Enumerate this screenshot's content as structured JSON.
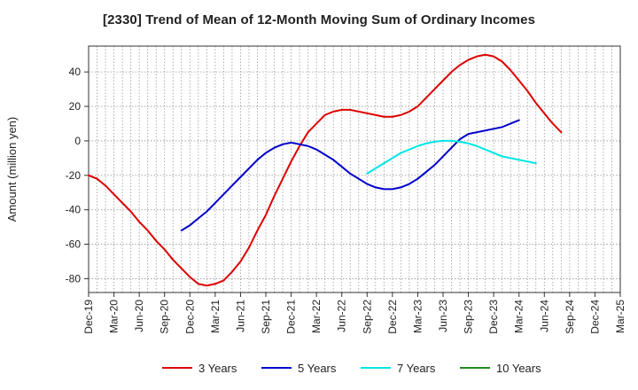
{
  "chart_data": {
    "type": "line",
    "title": "[2330]  Trend of Mean of 12-Month Moving Sum of Ordinary Incomes",
    "xlabel": "",
    "ylabel": "Amount (million yen)",
    "ylim": [
      -88,
      55
    ],
    "yticks": [
      40,
      20,
      0,
      -20,
      -40,
      -60,
      -80
    ],
    "grid": true,
    "legend_position": "bottom-center",
    "categories": [
      "Dec-19",
      "Mar-20",
      "Jun-20",
      "Sep-20",
      "Dec-20",
      "Mar-21",
      "Jun-21",
      "Sep-21",
      "Dec-21",
      "Mar-22",
      "Jun-22",
      "Sep-22",
      "Dec-22",
      "Mar-23",
      "Jun-23",
      "Sep-23",
      "Dec-23",
      "Mar-24",
      "Jun-24",
      "Sep-24",
      "Dec-24",
      "Mar-25"
    ],
    "series": [
      {
        "name": "3 Years",
        "color": "#dd0000",
        "points": [
          [
            0,
            -20
          ],
          [
            0.333,
            -22
          ],
          [
            0.667,
            -26
          ],
          [
            1,
            -31
          ],
          [
            1.333,
            -36
          ],
          [
            1.667,
            -41
          ],
          [
            2,
            -47
          ],
          [
            2.333,
            -52
          ],
          [
            2.667,
            -58
          ],
          [
            3,
            -63
          ],
          [
            3.333,
            -69
          ],
          [
            3.667,
            -74
          ],
          [
            4,
            -79
          ],
          [
            4.333,
            -83
          ],
          [
            4.667,
            -84
          ],
          [
            5,
            -83
          ],
          [
            5.333,
            -81
          ],
          [
            5.667,
            -76
          ],
          [
            6,
            -70
          ],
          [
            6.333,
            -62
          ],
          [
            6.667,
            -52
          ],
          [
            7,
            -43
          ],
          [
            7.333,
            -32
          ],
          [
            7.667,
            -22
          ],
          [
            8,
            -12
          ],
          [
            8.333,
            -3
          ],
          [
            8.667,
            5
          ],
          [
            9,
            10
          ],
          [
            9.333,
            15
          ],
          [
            9.667,
            17
          ],
          [
            10,
            18
          ],
          [
            10.333,
            18
          ],
          [
            10.667,
            17
          ],
          [
            11,
            16
          ],
          [
            11.333,
            15
          ],
          [
            11.667,
            14
          ],
          [
            12,
            14
          ],
          [
            12.333,
            15
          ],
          [
            12.667,
            17
          ],
          [
            13,
            20
          ],
          [
            13.333,
            25
          ],
          [
            13.667,
            30
          ],
          [
            14,
            35
          ],
          [
            14.333,
            40
          ],
          [
            14.667,
            44
          ],
          [
            15,
            47
          ],
          [
            15.333,
            49
          ],
          [
            15.667,
            50
          ],
          [
            16,
            49
          ],
          [
            16.333,
            46
          ],
          [
            16.667,
            41
          ],
          [
            17,
            35
          ],
          [
            17.333,
            29
          ],
          [
            17.667,
            22
          ],
          [
            18,
            16
          ],
          [
            18.333,
            10
          ],
          [
            18.667,
            5
          ]
        ]
      },
      {
        "name": "5 Years",
        "color": "#0000cc",
        "points": [
          [
            3.667,
            -52
          ],
          [
            4,
            -49
          ],
          [
            4.333,
            -45
          ],
          [
            4.667,
            -41
          ],
          [
            5,
            -36
          ],
          [
            5.333,
            -31
          ],
          [
            5.667,
            -26
          ],
          [
            6,
            -21
          ],
          [
            6.333,
            -16
          ],
          [
            6.667,
            -11
          ],
          [
            7,
            -7
          ],
          [
            7.333,
            -4
          ],
          [
            7.667,
            -2
          ],
          [
            8,
            -1
          ],
          [
            8.333,
            -2
          ],
          [
            8.667,
            -3
          ],
          [
            9,
            -5
          ],
          [
            9.333,
            -8
          ],
          [
            9.667,
            -11
          ],
          [
            10,
            -15
          ],
          [
            10.333,
            -19
          ],
          [
            10.667,
            -22
          ],
          [
            11,
            -25
          ],
          [
            11.333,
            -27
          ],
          [
            11.667,
            -28
          ],
          [
            12,
            -28
          ],
          [
            12.333,
            -27
          ],
          [
            12.667,
            -25
          ],
          [
            13,
            -22
          ],
          [
            13.333,
            -18
          ],
          [
            13.667,
            -14
          ],
          [
            14,
            -9
          ],
          [
            14.333,
            -4
          ],
          [
            14.667,
            1
          ],
          [
            15,
            4
          ],
          [
            15.333,
            5
          ],
          [
            15.667,
            6
          ],
          [
            16,
            7
          ],
          [
            16.333,
            8
          ],
          [
            16.667,
            10
          ],
          [
            17,
            12
          ]
        ]
      },
      {
        "name": "7 Years",
        "color": "#00e5e5",
        "points": [
          [
            11,
            -19
          ],
          [
            11.333,
            -16
          ],
          [
            11.667,
            -13
          ],
          [
            12,
            -10
          ],
          [
            12.333,
            -7
          ],
          [
            12.667,
            -5
          ],
          [
            13,
            -3
          ],
          [
            13.333,
            -1.5
          ],
          [
            13.667,
            -0.5
          ],
          [
            14,
            0
          ],
          [
            14.333,
            0
          ],
          [
            14.667,
            -0.5
          ],
          [
            15,
            -1.5
          ],
          [
            15.333,
            -3
          ],
          [
            15.667,
            -5
          ],
          [
            16,
            -7
          ],
          [
            16.333,
            -9
          ],
          [
            16.667,
            -10
          ],
          [
            17,
            -11
          ],
          [
            17.333,
            -12
          ],
          [
            17.667,
            -13
          ]
        ]
      },
      {
        "name": "10 Years",
        "color": "#228b22",
        "points": []
      }
    ]
  }
}
